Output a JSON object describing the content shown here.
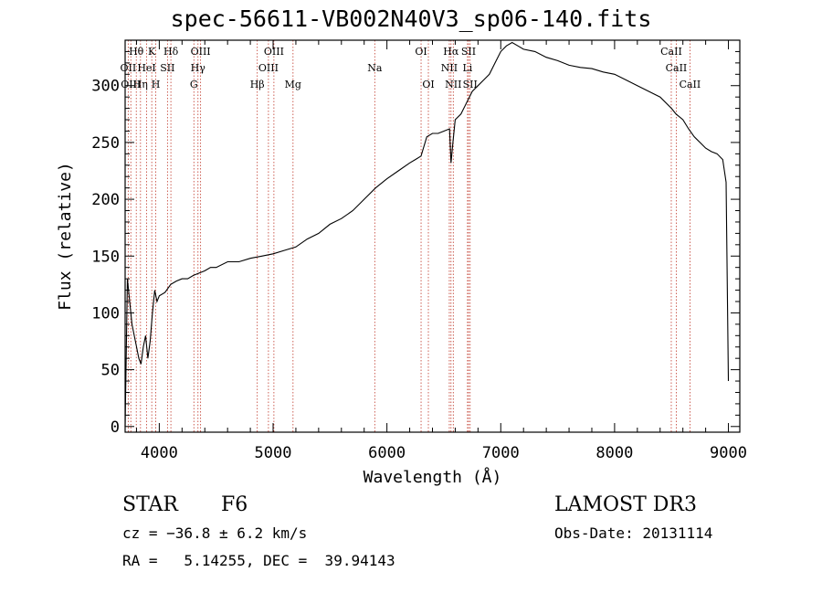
{
  "chart_data": {
    "type": "line",
    "title": "spec-56611-VB002N40V3_sp06-140.fits",
    "xlabel": "Wavelength (Å)",
    "ylabel": "Flux (relative)",
    "xlim": [
      3700,
      9100
    ],
    "ylim": [
      -5,
      340
    ],
    "xticks": [
      4000,
      5000,
      6000,
      7000,
      8000,
      9000
    ],
    "yticks": [
      0,
      50,
      100,
      150,
      200,
      250,
      300
    ],
    "grid": false,
    "series": [
      {
        "name": "flux",
        "x": [
          3700,
          3720,
          3740,
          3760,
          3780,
          3800,
          3820,
          3840,
          3860,
          3880,
          3900,
          3920,
          3940,
          3960,
          3980,
          4000,
          4050,
          4100,
          4150,
          4200,
          4250,
          4300,
          4350,
          4400,
          4450,
          4500,
          4600,
          4700,
          4800,
          4900,
          5000,
          5100,
          5200,
          5300,
          5400,
          5500,
          5600,
          5700,
          5800,
          5900,
          6000,
          6100,
          6200,
          6250,
          6300,
          6350,
          6400,
          6450,
          6500,
          6550,
          6563,
          6580,
          6600,
          6650,
          6700,
          6750,
          6800,
          6850,
          6900,
          6950,
          7000,
          7050,
          7100,
          7150,
          7200,
          7300,
          7400,
          7500,
          7600,
          7700,
          7800,
          7900,
          8000,
          8100,
          8200,
          8300,
          8400,
          8500,
          8540,
          8600,
          8650,
          8700,
          8750,
          8800,
          8850,
          8900,
          8950,
          8980,
          9000
        ],
        "values": [
          0,
          130,
          110,
          90,
          80,
          70,
          60,
          55,
          70,
          80,
          60,
          75,
          100,
          120,
          110,
          115,
          118,
          125,
          128,
          130,
          130,
          133,
          135,
          137,
          140,
          140,
          145,
          145,
          148,
          150,
          152,
          155,
          158,
          165,
          170,
          178,
          183,
          190,
          200,
          210,
          218,
          225,
          232,
          235,
          238,
          255,
          258,
          258,
          260,
          262,
          232,
          250,
          270,
          275,
          285,
          295,
          300,
          305,
          310,
          320,
          330,
          335,
          338,
          335,
          332,
          330,
          325,
          322,
          318,
          316,
          315,
          312,
          310,
          305,
          300,
          295,
          290,
          280,
          275,
          270,
          262,
          255,
          250,
          245,
          242,
          240,
          235,
          215,
          40
        ]
      }
    ],
    "lines": [
      {
        "label": "Hθ",
        "wl": 3798,
        "row": 0
      },
      {
        "label": "K",
        "wl": 3934,
        "row": 0
      },
      {
        "label": "Hδ",
        "wl": 4102,
        "row": 0
      },
      {
        "label": "OIII",
        "wl": 4363,
        "row": 0
      },
      {
        "label": "OIII",
        "wl": 5007,
        "row": 0
      },
      {
        "label": "OI",
        "wl": 6300,
        "row": 0
      },
      {
        "label": "Hα",
        "wl": 6563,
        "row": 0
      },
      {
        "label": "SII",
        "wl": 6717,
        "row": 0
      },
      {
        "label": "CaII",
        "wl": 8498,
        "row": 0
      },
      {
        "label": "OII",
        "wl": 3727,
        "row": 1
      },
      {
        "label": "HeI",
        "wl": 3889,
        "row": 1
      },
      {
        "label": "SII",
        "wl": 4072,
        "row": 1
      },
      {
        "label": "Hγ",
        "wl": 4340,
        "row": 1
      },
      {
        "label": "OIII",
        "wl": 4959,
        "row": 1
      },
      {
        "label": "Na",
        "wl": 5893,
        "row": 1
      },
      {
        "label": "NII",
        "wl": 6548,
        "row": 1
      },
      {
        "label": "Li",
        "wl": 6708,
        "row": 1
      },
      {
        "label": "CaII",
        "wl": 8542,
        "row": 1
      },
      {
        "label": "OIII",
        "wl": 3750,
        "row": 2
      },
      {
        "label": "Hη",
        "wl": 3835,
        "row": 2
      },
      {
        "label": "H",
        "wl": 3969,
        "row": 2
      },
      {
        "label": "G",
        "wl": 4304,
        "row": 2
      },
      {
        "label": "Hβ",
        "wl": 4861,
        "row": 2
      },
      {
        "label": "Mg",
        "wl": 5175,
        "row": 2
      },
      {
        "label": "OI",
        "wl": 6364,
        "row": 2
      },
      {
        "label": "NII",
        "wl": 6583,
        "row": 2
      },
      {
        "label": "SII",
        "wl": 6731,
        "row": 2
      },
      {
        "label": "CaII",
        "wl": 8662,
        "row": 2
      }
    ]
  },
  "info": {
    "object_class": "STAR",
    "subclass": "F6",
    "survey": "LAMOST DR3",
    "cz": "cz = −36.8 ± 6.2 km/s",
    "obs_date": "Obs-Date: 20131114",
    "coords": "RA =   5.14255, DEC =  39.94143"
  },
  "colors": {
    "line_marker": "#c0392b",
    "spectrum": "#000000",
    "axes": "#000000"
  }
}
